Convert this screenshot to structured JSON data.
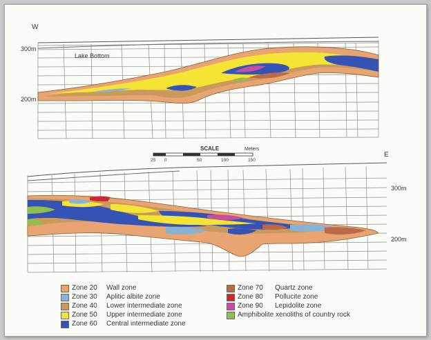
{
  "labels": {
    "west": "W",
    "east": "E",
    "lake_bottom": "Lake Bottom",
    "upper_300": "300m",
    "upper_200": "200m",
    "lower_300": "300m",
    "lower_200": "200m"
  },
  "scale": {
    "title": "SCALE",
    "unit": "Meters",
    "ticks": [
      "25",
      "0",
      "50",
      "100",
      "150"
    ]
  },
  "legend": [
    {
      "zone": "Zone 20",
      "desc": "Wall zone",
      "color": "#e8a572"
    },
    {
      "zone": "Zone 30",
      "desc": "Aplitic albite zone",
      "color": "#86b3d6"
    },
    {
      "zone": "Zone 40",
      "desc": "Lower intermediate zone",
      "color": "#c99a5b"
    },
    {
      "zone": "Zone 50",
      "desc": "Upper intermediate zone",
      "color": "#f4e534"
    },
    {
      "zone": "Zone 60",
      "desc": "Central intermediate zone",
      "color": "#3553b5"
    },
    {
      "zone": "Zone 70",
      "desc": "Quartz zone",
      "color": "#b86a4a"
    },
    {
      "zone": "Zone 80",
      "desc": "Pollucite zone",
      "color": "#d3252b"
    },
    {
      "zone": "Zone 90",
      "desc": "Lepidolite zone",
      "color": "#c84fa0"
    },
    {
      "zone": "",
      "desc": "Amphibolite xenoliths of country rock",
      "color": "#8fbf4f"
    }
  ]
}
